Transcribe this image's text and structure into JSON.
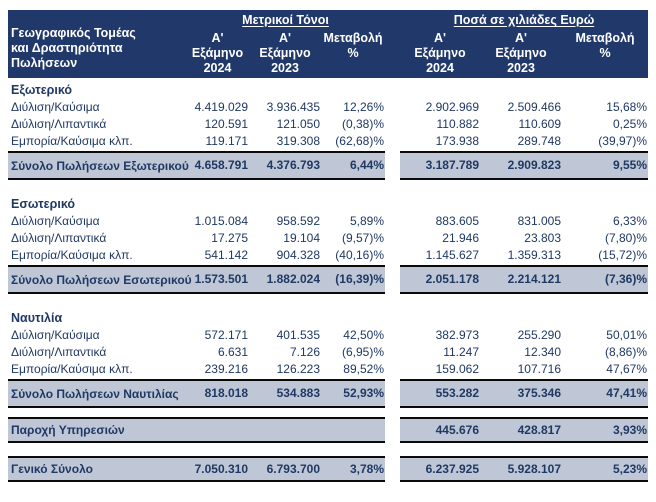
{
  "header": {
    "row_label_lines": [
      "Γεωγραφικός Τομέας",
      "και Δραστηριότητα",
      "Πωλήσεων"
    ],
    "group_left": "Μετρικοί Τόνοι",
    "group_right": "Ποσά σε χιλιάδες Ευρώ",
    "col_2024": "Α' Εξάμηνο 2024",
    "col_2023": "Α' Εξάμηνο 2023",
    "col_pct": "Μεταβολή %"
  },
  "colors": {
    "header_bg": "#21386a",
    "text_navy": "#1f3864",
    "band_bg": "#bfc7d6",
    "border_black": "#0a0a0a"
  },
  "sections": [
    {
      "name": "Εξωτερικό",
      "rows": [
        {
          "label": "Διύλιση/Καύσιμα",
          "mt_2024": "4.419.029",
          "mt_2023": "3.936.435",
          "mt_pct": "12,26%",
          "eur_2024": "2.902.969",
          "eur_2023": "2.509.466",
          "eur_pct": "15,68%"
        },
        {
          "label": "Διύλιση/Λιπαντικά",
          "mt_2024": "120.591",
          "mt_2023": "121.050",
          "mt_pct": "(0,38)%",
          "eur_2024": "110.882",
          "eur_2023": "110.609",
          "eur_pct": "0,25%"
        },
        {
          "label": "Εμπορία/Καύσιμα κλπ.",
          "mt_2024": "119.171",
          "mt_2023": "319.308",
          "mt_pct": "(62,68)%",
          "eur_2024": "173.938",
          "eur_2023": "289.748",
          "eur_pct": "(39,97)%"
        }
      ],
      "total": {
        "label": "Σύνολο Πωλήσεων Εξωτερικού",
        "mt_2024": "4.658.791",
        "mt_2023": "4.376.793",
        "mt_pct": "6,44%",
        "eur_2024": "3.187.789",
        "eur_2023": "2.909.823",
        "eur_pct": "9,55%"
      }
    },
    {
      "name": "Εσωτερικό",
      "rows": [
        {
          "label": "Διύλιση/Καύσιμα",
          "mt_2024": "1.015.084",
          "mt_2023": "958.592",
          "mt_pct": "5,89%",
          "eur_2024": "883.605",
          "eur_2023": "831.005",
          "eur_pct": "6,33%"
        },
        {
          "label": "Διύλιση/Λιπαντικά",
          "mt_2024": "17.275",
          "mt_2023": "19.104",
          "mt_pct": "(9,57)%",
          "eur_2024": "21.946",
          "eur_2023": "23.803",
          "eur_pct": "(7,80)%"
        },
        {
          "label": "Εμπορία/Καύσιμα κλπ.",
          "mt_2024": "541.142",
          "mt_2023": "904.328",
          "mt_pct": "(40,16)%",
          "eur_2024": "1.145.627",
          "eur_2023": "1.359.313",
          "eur_pct": "(15,72)%"
        }
      ],
      "total": {
        "label": "Σύνολο Πωλήσεων Εσωτερικού",
        "mt_2024": "1.573.501",
        "mt_2023": "1.882.024",
        "mt_pct": "(16,39)%",
        "eur_2024": "2.051.178",
        "eur_2023": "2.214.121",
        "eur_pct": "(7,36)%"
      }
    },
    {
      "name": "Ναυτιλία",
      "rows": [
        {
          "label": "Διύλιση/Καύσιμα",
          "mt_2024": "572.171",
          "mt_2023": "401.535",
          "mt_pct": "42,50%",
          "eur_2024": "382.973",
          "eur_2023": "255.290",
          "eur_pct": "50,01%"
        },
        {
          "label": "Διύλιση/Λιπαντικά",
          "mt_2024": "6.631",
          "mt_2023": "7.126",
          "mt_pct": "(6,95)%",
          "eur_2024": "11.247",
          "eur_2023": "12.340",
          "eur_pct": "(8,86)%"
        },
        {
          "label": "Εμπορία/Καύσιμα κλπ.",
          "mt_2024": "239.216",
          "mt_2023": "126.223",
          "mt_pct": "89,52%",
          "eur_2024": "159.062",
          "eur_2023": "107.716",
          "eur_pct": "47,67%"
        }
      ],
      "total": {
        "label": "Σύνολο Πωλήσεων Ναυτιλίας",
        "mt_2024": "818.018",
        "mt_2023": "534.883",
        "mt_pct": "52,93%",
        "eur_2024": "553.282",
        "eur_2023": "375.346",
        "eur_pct": "47,41%"
      }
    }
  ],
  "services": {
    "label": "Παροχή Υπηρεσιών",
    "mt_2024": "",
    "mt_2023": "",
    "mt_pct": "",
    "eur_2024": "445.676",
    "eur_2023": "428.817",
    "eur_pct": "3,93%"
  },
  "grand_total": {
    "label": "Γενικό Σύνολο",
    "mt_2024": "7.050.310",
    "mt_2023": "6.793.700",
    "mt_pct": "3,78%",
    "eur_2024": "6.237.925",
    "eur_2023": "5.928.107",
    "eur_pct": "5,23%"
  }
}
